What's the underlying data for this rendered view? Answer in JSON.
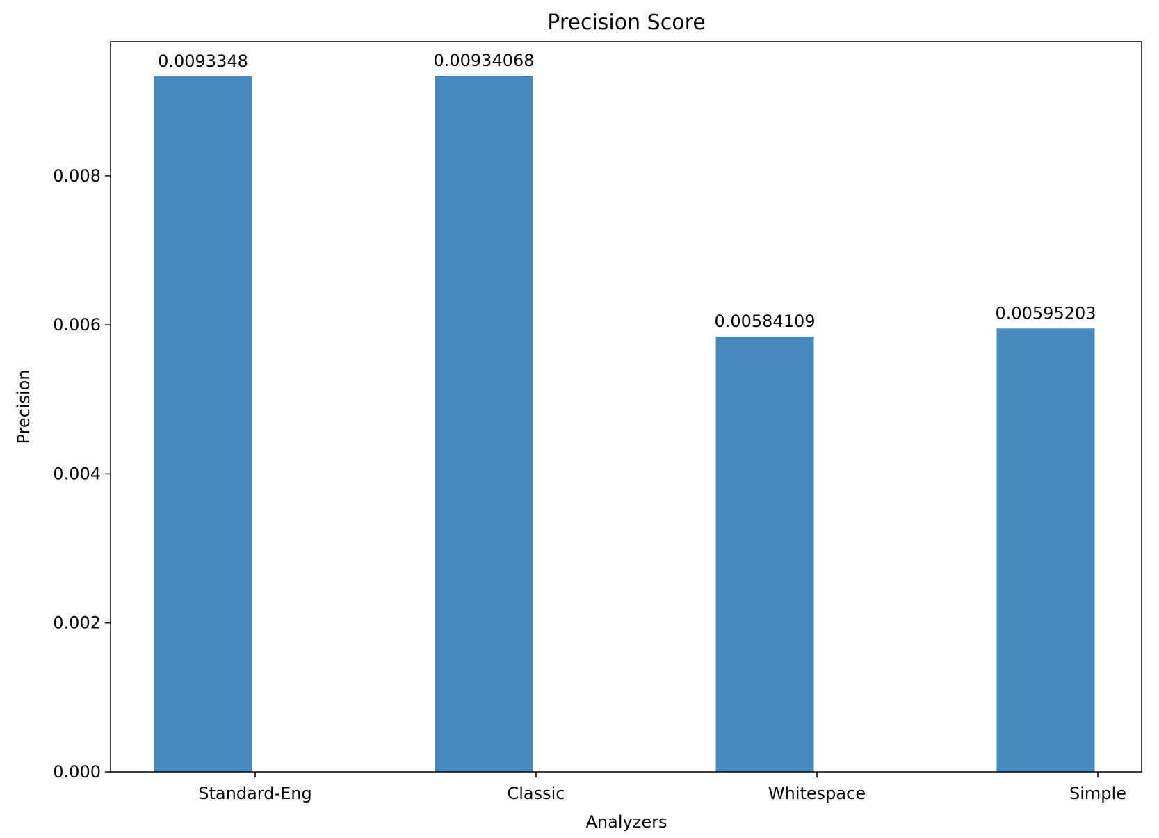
{
  "chart_data": {
    "type": "bar",
    "title": "Precision Score",
    "xlabel": "Analyzers",
    "ylabel": "Precision",
    "categories": [
      "Standard-Eng",
      "Classic",
      "Whitespace",
      "Simple"
    ],
    "values": [
      0.0093348,
      0.00934068,
      0.00584109,
      0.00595203
    ],
    "data_labels": [
      "0.0093348",
      "0.00934068",
      "0.00584109",
      "0.00595203"
    ],
    "ylim": [
      0,
      0.0098
    ],
    "yticks": [
      0.0,
      0.002,
      0.004,
      0.006,
      0.008
    ],
    "ytick_labels": [
      "0.000",
      "0.002",
      "0.004",
      "0.006",
      "0.008"
    ],
    "bar_color": "#4689be",
    "grid": false,
    "legend": "none"
  }
}
